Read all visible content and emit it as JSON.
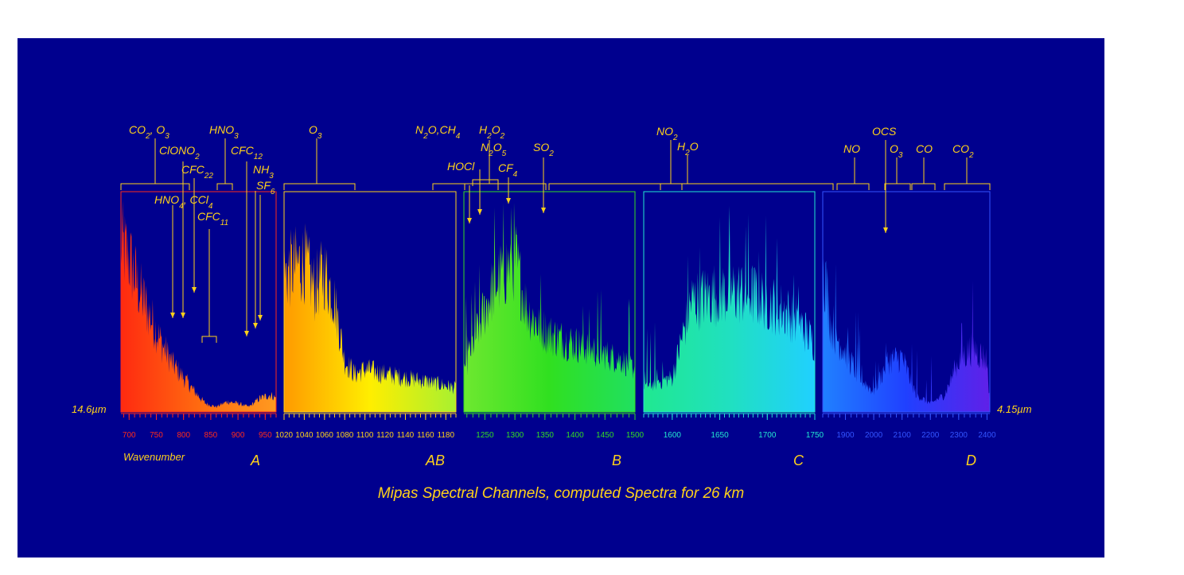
{
  "title": "Mipas Spectral Channels, computed Spectra for 26 km",
  "colors": {
    "background": "#00008e",
    "label": "#ffd21a"
  },
  "wavelength_left": "14.6µm",
  "wavelength_right": "4.15µm",
  "xlabel": "Wavenumber",
  "chart_data": {
    "type": "line",
    "title": "Mipas Spectral Channels, computed Spectra for 26 km",
    "xlabel": "Wavenumber",
    "bands": [
      {
        "name": "A",
        "xlim": [
          685,
          970
        ],
        "color": "#ff2a1a",
        "ticks": [
          "700",
          "750",
          "800",
          "850",
          "900",
          "950"
        ],
        "tick_values": [
          700,
          750,
          800,
          850,
          900,
          950
        ],
        "envelope": [
          [
            685,
            0.98
          ],
          [
            700,
            0.9
          ],
          [
            720,
            0.7
          ],
          [
            740,
            0.55
          ],
          [
            760,
            0.4
          ],
          [
            780,
            0.28
          ],
          [
            800,
            0.2
          ],
          [
            820,
            0.12
          ],
          [
            840,
            0.05
          ],
          [
            860,
            0.03
          ],
          [
            880,
            0.06
          ],
          [
            900,
            0.05
          ],
          [
            920,
            0.03
          ],
          [
            940,
            0.08
          ],
          [
            960,
            0.1
          ],
          [
            970,
            0.08
          ]
        ]
      },
      {
        "name": "AB",
        "xlim": [
          1020,
          1190
        ],
        "color": "#ffd21a",
        "ticks": [
          "1020",
          "1040",
          "1060",
          "1080",
          "1100",
          "1120",
          "1140",
          "1160",
          "1180"
        ],
        "tick_values": [
          1020,
          1040,
          1060,
          1080,
          1100,
          1120,
          1140,
          1160,
          1180
        ],
        "envelope": [
          [
            1020,
            0.8
          ],
          [
            1030,
            0.85
          ],
          [
            1040,
            0.88
          ],
          [
            1050,
            0.72
          ],
          [
            1060,
            0.82
          ],
          [
            1070,
            0.65
          ],
          [
            1080,
            0.3
          ],
          [
            1090,
            0.22
          ],
          [
            1100,
            0.25
          ],
          [
            1120,
            0.22
          ],
          [
            1140,
            0.2
          ],
          [
            1160,
            0.18
          ],
          [
            1190,
            0.14
          ]
        ]
      },
      {
        "name": "B",
        "xlim": [
          1215,
          1500
        ],
        "color": "#33dd22",
        "ticks": [
          "1250",
          "1300",
          "1350",
          "1400",
          "1450",
          "1500"
        ],
        "tick_values": [
          1250,
          1300,
          1350,
          1400,
          1450,
          1500
        ],
        "envelope": [
          [
            1215,
            0.25
          ],
          [
            1240,
            0.5
          ],
          [
            1260,
            0.7
          ],
          [
            1280,
            0.82
          ],
          [
            1300,
            0.9
          ],
          [
            1320,
            0.6
          ],
          [
            1340,
            0.5
          ],
          [
            1360,
            0.45
          ],
          [
            1400,
            0.4
          ],
          [
            1440,
            0.35
          ],
          [
            1480,
            0.3
          ],
          [
            1500,
            0.25
          ]
        ]
      },
      {
        "name": "C",
        "xlim": [
          1570,
          1750
        ],
        "color": "#22e8d0",
        "ticks": [
          "1600",
          "1650",
          "1700",
          "1750"
        ],
        "tick_values": [
          1600,
          1650,
          1700,
          1750
        ],
        "envelope": [
          [
            1570,
            0.15
          ],
          [
            1600,
            0.2
          ],
          [
            1620,
            0.65
          ],
          [
            1650,
            0.7
          ],
          [
            1680,
            0.7
          ],
          [
            1700,
            0.65
          ],
          [
            1730,
            0.55
          ],
          [
            1750,
            0.4
          ]
        ]
      },
      {
        "name": "D",
        "xlim": [
          1820,
          2410
        ],
        "color": "#3355ff",
        "ticks": [
          "1900",
          "2000",
          "2100",
          "2200",
          "2300",
          "2400"
        ],
        "tick_values": [
          1900,
          2000,
          2100,
          2200,
          2300,
          2400
        ],
        "envelope": [
          [
            1820,
            0.9
          ],
          [
            1850,
            0.5
          ],
          [
            1900,
            0.35
          ],
          [
            1950,
            0.2
          ],
          [
            2000,
            0.12
          ],
          [
            2050,
            0.3
          ],
          [
            2100,
            0.32
          ],
          [
            2150,
            0.1
          ],
          [
            2200,
            0.05
          ],
          [
            2250,
            0.1
          ],
          [
            2300,
            0.3
          ],
          [
            2350,
            0.38
          ],
          [
            2400,
            0.3
          ],
          [
            2410,
            0.05
          ]
        ]
      }
    ],
    "molecules": [
      {
        "label": "CO2, O3"
      },
      {
        "label": "HNO3"
      },
      {
        "label": "ClONO2"
      },
      {
        "label": "CFC12"
      },
      {
        "label": "CFC22"
      },
      {
        "label": "NH3"
      },
      {
        "label": "SF6"
      },
      {
        "label": "HNO4, CCl4"
      },
      {
        "label": "CFC11"
      },
      {
        "label": "O3"
      },
      {
        "label": "N2O,CH4"
      },
      {
        "label": "H2O2"
      },
      {
        "label": "N2O5"
      },
      {
        "label": "HOCl"
      },
      {
        "label": "CF4"
      },
      {
        "label": "SO2"
      },
      {
        "label": "NO2"
      },
      {
        "label": "H2O"
      },
      {
        "label": "OCS"
      },
      {
        "label": "NO"
      },
      {
        "label": "O3"
      },
      {
        "label": "CO"
      },
      {
        "label": "CO2"
      }
    ]
  }
}
